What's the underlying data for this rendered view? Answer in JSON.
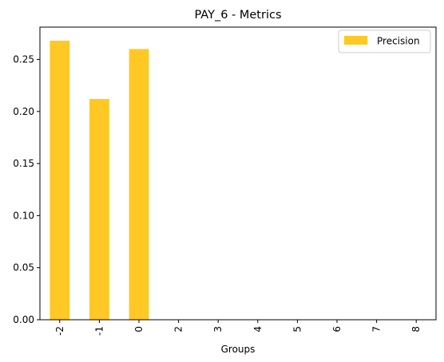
{
  "chart_data": {
    "type": "bar",
    "title": "PAY_6 - Metrics",
    "xlabel": "Groups",
    "ylabel": "",
    "categories": [
      "-2",
      "-1",
      "0",
      "2",
      "3",
      "4",
      "5",
      "6",
      "7",
      "8"
    ],
    "series": [
      {
        "name": "Precision",
        "color": "#ffc825",
        "values": [
          0.268,
          0.212,
          0.26,
          0,
          0,
          0,
          0,
          0,
          0,
          0
        ]
      }
    ],
    "ylim": [
      0,
      0.281
    ],
    "yticks": [
      "0.00",
      "0.05",
      "0.10",
      "0.15",
      "0.20",
      "0.25"
    ],
    "ytick_values": [
      0,
      0.05,
      0.1,
      0.15,
      0.2,
      0.25
    ],
    "grid": false,
    "legend_position": "top-right"
  }
}
